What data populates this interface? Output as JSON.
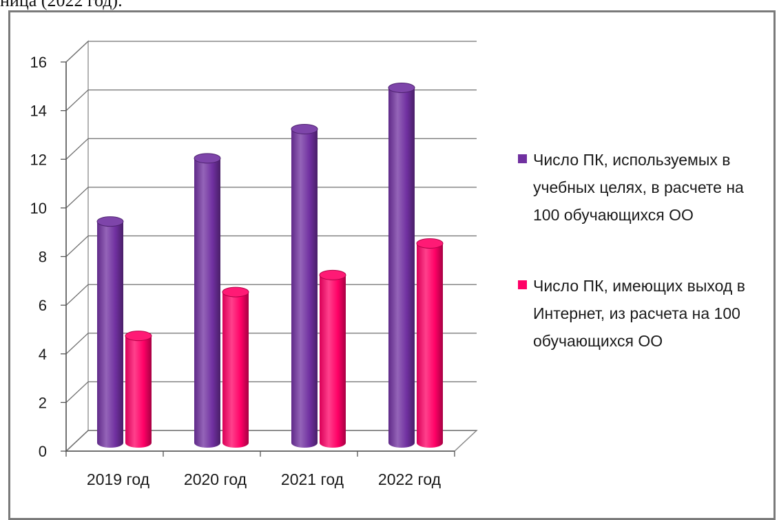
{
  "caption": "ница (2022 год).",
  "colors": {
    "series1": "#7030a0",
    "series2": "#ff0066"
  },
  "chart_data": {
    "type": "bar",
    "title": "",
    "xlabel": "",
    "ylabel": "",
    "categories": [
      "2019 год",
      "2020 год",
      "2021 год",
      "2022 год"
    ],
    "series": [
      {
        "name": "Число ПК, используемых в учебных целях, в расчете на 100 обучающихся ОО",
        "values": [
          9.1,
          11.7,
          12.9,
          14.6
        ]
      },
      {
        "name": "Число ПК, имеющих выход в Интернет, из расчета на 100 обучающихся ОО",
        "values": [
          4.4,
          6.2,
          6.9,
          8.2
        ]
      }
    ],
    "ylim": [
      0,
      16
    ],
    "yticks": [
      0,
      2,
      4,
      6,
      8,
      10,
      12,
      14,
      16
    ],
    "grid": true,
    "legend": "right",
    "style": "3d-cylinder"
  }
}
